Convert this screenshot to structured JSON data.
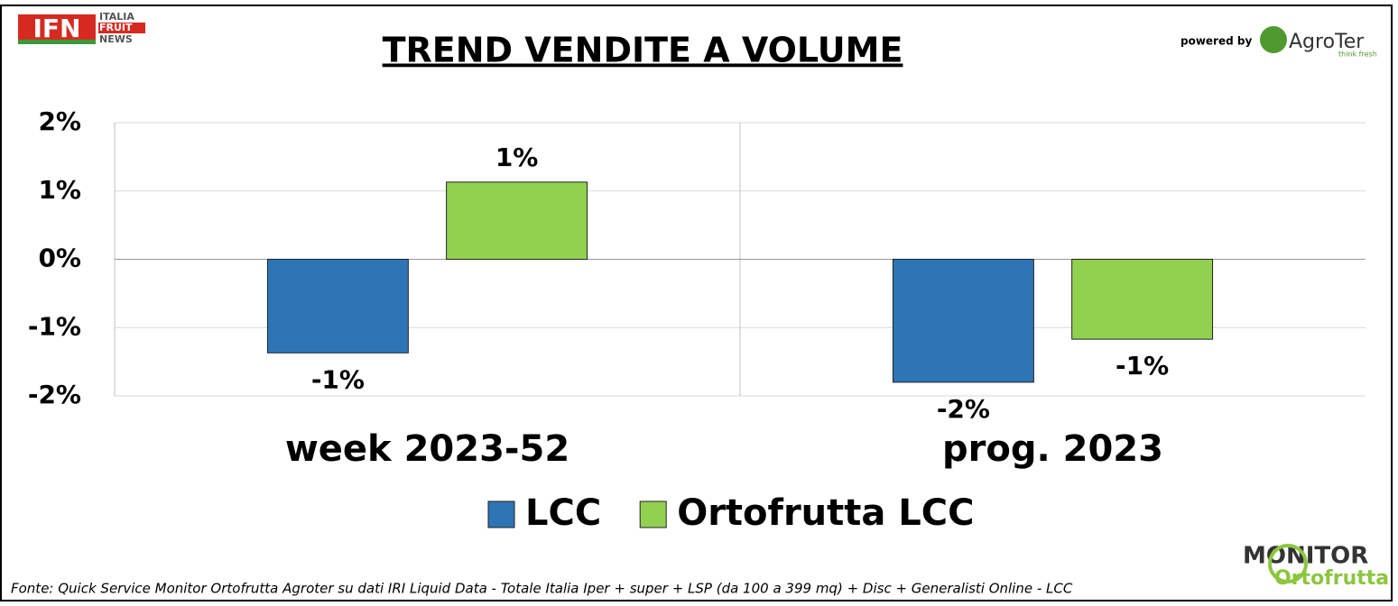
{
  "chart_data": {
    "type": "bar",
    "title": "TREND VENDITE A VOLUME",
    "categories": [
      "week 2023-52",
      "prog. 2023"
    ],
    "series": [
      {
        "name": "LCC",
        "color": "#2e75b6",
        "values": [
          -1.37,
          -1.8
        ],
        "value_labels": [
          "-1%",
          "-2%"
        ]
      },
      {
        "name": "Ortofrutta LCC",
        "color": "#92d050",
        "values": [
          1.13,
          -1.17
        ],
        "value_labels": [
          "1%",
          "-1%"
        ]
      }
    ],
    "ylim": [
      -2,
      2
    ],
    "yticks": [
      {
        "value": -2,
        "label": "-2%"
      },
      {
        "value": -1,
        "label": "-1%"
      },
      {
        "value": 0,
        "label": "0%"
      },
      {
        "value": 1,
        "label": "1%"
      },
      {
        "value": 2,
        "label": "2%"
      }
    ],
    "grid": true,
    "source": "Fonte: Quick Service Monitor Ortofrutta Agroter su dati IRI Liquid Data - Totale Italia Iper + super + LSP (da 100 a 399 mq) + Disc + Generalisti Online - LCC"
  },
  "logos": {
    "ifn": "IFN",
    "ifn_lines": [
      "ITALIA",
      "FRUIT",
      "NEWS"
    ],
    "powered": "powered by",
    "agroter": "AgroTer",
    "agroter_tag": "think fresh",
    "monitor": "MONITOR",
    "ortofrutta": "Ortofrutta"
  }
}
